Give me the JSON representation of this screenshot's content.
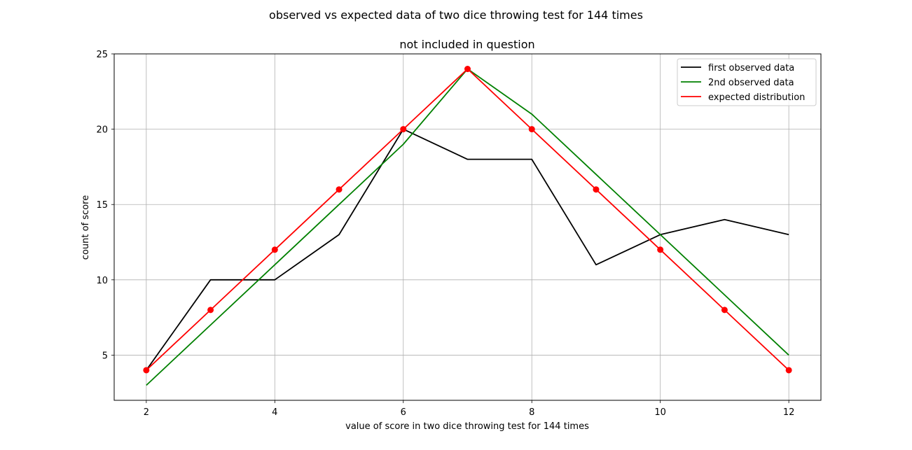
{
  "chart_data": {
    "type": "line",
    "suptitle": "observed vs expected data of two dice throwing test for 144 times",
    "title": "not included in question",
    "xlabel": "value of score in two dice throwing test for 144 times",
    "ylabel": "count of score",
    "x": [
      2,
      3,
      4,
      5,
      6,
      7,
      8,
      9,
      10,
      11,
      12
    ],
    "xlim": [
      1.5,
      12.5
    ],
    "ylim": [
      2,
      25
    ],
    "xticks": [
      2,
      4,
      6,
      8,
      10,
      12
    ],
    "yticks": [
      5,
      10,
      15,
      20,
      25
    ],
    "grid": true,
    "legend_position": "top-right",
    "series": [
      {
        "name": "first observed data",
        "color": "#000000",
        "marker": false,
        "values": [
          4,
          10,
          10,
          13,
          20,
          18,
          18,
          11,
          13,
          14,
          13
        ]
      },
      {
        "name": "2nd observed data",
        "color": "#008000",
        "marker": false,
        "values": [
          3,
          7,
          11,
          15,
          19,
          24,
          21,
          17,
          13,
          9,
          5
        ]
      },
      {
        "name": "expected distribution",
        "color": "#ff0000",
        "marker": true,
        "values": [
          4,
          8,
          12,
          16,
          20,
          24,
          20,
          16,
          12,
          8,
          4
        ]
      }
    ]
  }
}
